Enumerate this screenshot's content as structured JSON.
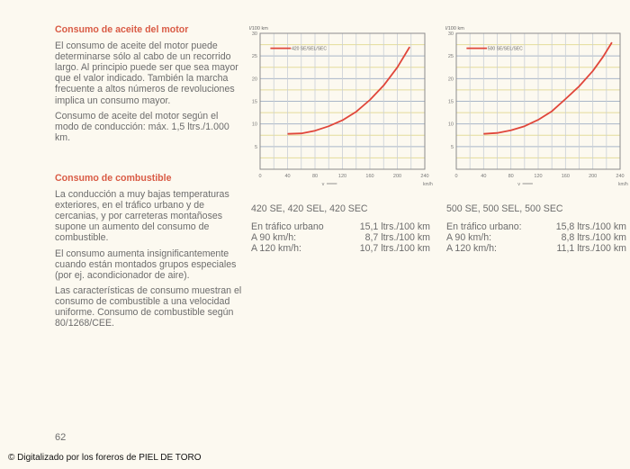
{
  "left_column": {
    "section1": {
      "heading": "Consumo de aceite del motor",
      "paragraphs": [
        "El consumo de aceite del motor puede determinarse sólo al cabo de un recorrido largo. Al principio puede ser que sea mayor que el valor indicado. También la marcha frecuente a altos números de revoluciones implica un consumo mayor.",
        "Consumo de aceite del motor según el modo de conducción: máx. 1,5 ltrs./1.000 km."
      ]
    },
    "section2": {
      "heading": "Consumo de combustible",
      "paragraphs": [
        "La conducción a muy bajas temperaturas exteriores, en el tráfico urbano y de cercanias, y por carreteras montañoses supone un aumento del consumo de combustible.",
        "El consumo aumenta insignificantemente cuando están montados grupos especiales (por ej. acondicionador de aire).",
        "Las características de consumo muestran el consumo de combustible a una velocidad uniforme. Consumo de combustible según 80/1268/CEE."
      ]
    }
  },
  "chart_data": [
    {
      "type": "line",
      "ylabel": "l/100 km",
      "xlabel": "v",
      "xunit": "km/h",
      "xlim": [
        0,
        240
      ],
      "ylim": [
        0,
        30
      ],
      "xticks": [
        "0",
        "40",
        "80",
        "120",
        "160",
        "200",
        "240"
      ],
      "yticks": [
        "5",
        "10",
        "15",
        "20",
        "25",
        "30"
      ],
      "grid": true,
      "legend": "top-left",
      "color": "#e0463a",
      "series": [
        {
          "name": "420 SE/SEL/SEC",
          "x": [
            40,
            60,
            80,
            100,
            120,
            140,
            160,
            180,
            200,
            218
          ],
          "y": [
            7.8,
            7.9,
            8.5,
            9.5,
            10.8,
            12.7,
            15.3,
            18.5,
            22.5,
            27.0
          ]
        }
      ]
    },
    {
      "type": "line",
      "ylabel": "l/100 km",
      "xlabel": "v",
      "xunit": "km/h",
      "xlim": [
        0,
        240
      ],
      "ylim": [
        0,
        30
      ],
      "xticks": [
        "0",
        "40",
        "80",
        "120",
        "160",
        "200",
        "240"
      ],
      "yticks": [
        "5",
        "10",
        "15",
        "20",
        "25",
        "30"
      ],
      "grid": true,
      "legend": "top-left",
      "color": "#e0463a",
      "series": [
        {
          "name": "500 SE/SEL/SEC",
          "x": [
            40,
            60,
            80,
            100,
            120,
            140,
            160,
            180,
            200,
            215,
            228
          ],
          "y": [
            7.8,
            8.0,
            8.6,
            9.5,
            10.9,
            12.8,
            15.5,
            18.3,
            21.7,
            24.8,
            28.0
          ]
        }
      ]
    }
  ],
  "specs": [
    {
      "title": "420 SE, 420 SEL, 420 SEC",
      "rows": [
        {
          "label": "En tráfico urbano",
          "value": "15,1 ltrs./100 km"
        },
        {
          "label": "A 90 km/h:",
          "value": "8,7 ltrs./100 km"
        },
        {
          "label": "A 120 km/h:",
          "value": "10,7 ltrs./100 km"
        }
      ]
    },
    {
      "title": "500 SE, 500 SEL, 500 SEC",
      "rows": [
        {
          "label": "En tráfico urbano:",
          "value": "15,8 ltrs./100 km"
        },
        {
          "label": "A 90 km/h:",
          "value": "8,8 ltrs./100 km"
        },
        {
          "label": "A 120 km/h:",
          "value": "11,1 ltrs./100 km"
        }
      ]
    }
  ],
  "page_number": "62",
  "credit": "© Digitalizado por los foreros de PIEL DE TORO"
}
